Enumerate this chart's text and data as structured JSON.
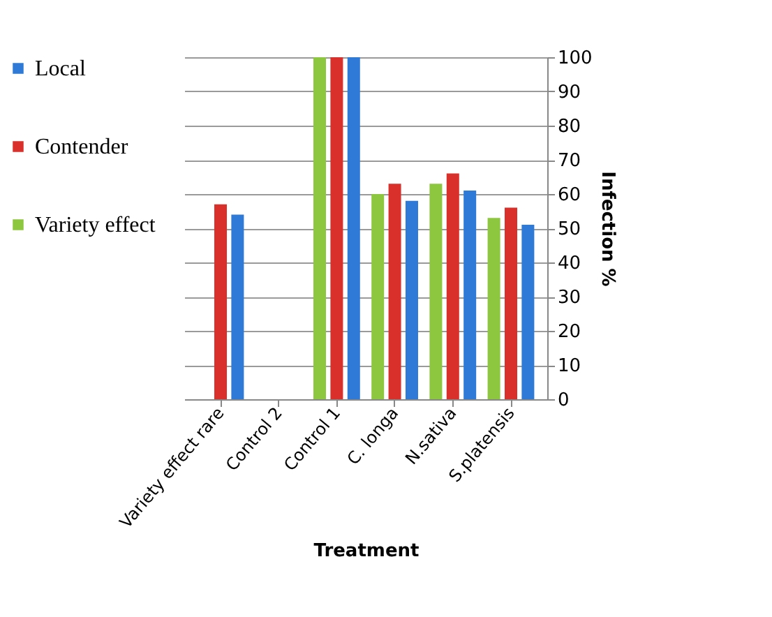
{
  "chart_data": {
    "type": "bar",
    "xlabel": "Treatment",
    "ylabel": "Infection %",
    "categories": [
      "Variety effect rare",
      "Control 2",
      "Control 1",
      "C. longa",
      "N.sativa",
      "S.platensis"
    ],
    "series": [
      {
        "name": "Variety effect",
        "color": "#8dc63f",
        "values": [
          null,
          0,
          100,
          60,
          63,
          53
        ]
      },
      {
        "name": "Contender",
        "color": "#d9302b",
        "values": [
          57,
          0,
          100,
          63,
          66,
          56
        ]
      },
      {
        "name": "Local",
        "color": "#2f7ad6",
        "values": [
          54,
          0,
          100,
          58,
          61,
          51
        ]
      }
    ],
    "ylim": [
      0,
      100
    ],
    "yticks": [
      0,
      10,
      20,
      30,
      40,
      50,
      60,
      70,
      80,
      90,
      100
    ],
    "grid": "y",
    "legend": "left"
  }
}
